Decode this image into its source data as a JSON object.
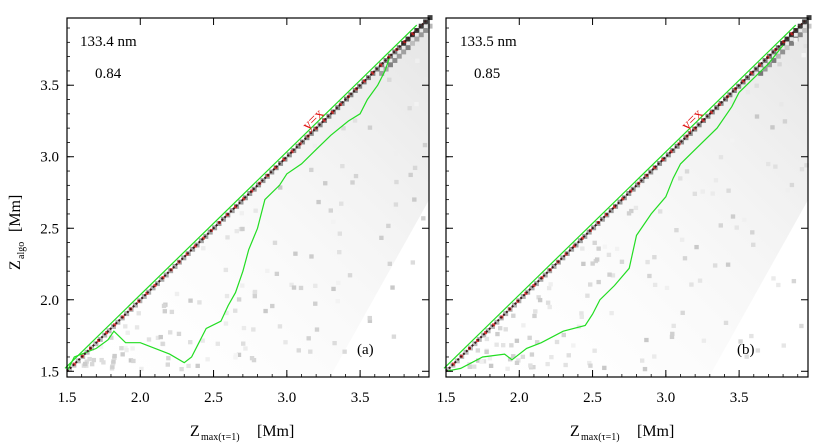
{
  "chart_data": [
    {
      "type": "heatmap",
      "panel": "(a)",
      "wavelength": "133.4 nm",
      "correlation": "0.84",
      "xlabel_main": "Z",
      "xlabel_sub": "max(τ=1)",
      "xlabel_unit": "[Mm]",
      "ylabel_main": "Z",
      "ylabel_sub": "algo",
      "ylabel_unit": "[Mm]",
      "xlim": [
        1.5,
        3.97
      ],
      "ylim": [
        1.46,
        3.97
      ],
      "xticks": [
        "1.5",
        "2.0",
        "2.5",
        "3.0",
        "3.5"
      ],
      "yticks": [
        "1.5",
        "2.0",
        "2.5",
        "3.0",
        "3.5"
      ],
      "reference_line": {
        "label": "y=x",
        "color": "#e01010"
      },
      "contour_color": "#22dd22",
      "contour": [
        [
          1.5,
          1.5
        ],
        [
          1.55,
          1.6
        ],
        [
          1.7,
          1.66
        ],
        [
          1.78,
          1.72
        ],
        [
          1.82,
          1.78
        ],
        [
          1.9,
          1.7
        ],
        [
          2.0,
          1.7
        ],
        [
          2.2,
          1.62
        ],
        [
          2.3,
          1.56
        ],
        [
          2.35,
          1.6
        ],
        [
          2.4,
          1.7
        ],
        [
          2.45,
          1.8
        ],
        [
          2.55,
          1.85
        ],
        [
          2.6,
          1.96
        ],
        [
          2.65,
          2.05
        ],
        [
          2.7,
          2.2
        ],
        [
          2.74,
          2.35
        ],
        [
          2.8,
          2.5
        ],
        [
          2.85,
          2.7
        ],
        [
          2.95,
          2.8
        ],
        [
          3.0,
          2.88
        ],
        [
          3.1,
          2.95
        ],
        [
          3.2,
          3.05
        ],
        [
          3.3,
          3.15
        ],
        [
          3.42,
          3.25
        ],
        [
          3.5,
          3.3
        ],
        [
          3.55,
          3.4
        ],
        [
          3.62,
          3.5
        ],
        [
          3.67,
          3.6
        ],
        [
          3.7,
          3.69
        ]
      ]
    },
    {
      "type": "heatmap",
      "panel": "(b)",
      "wavelength": "133.5 nm",
      "correlation": "0.85",
      "xlabel_main": "Z",
      "xlabel_sub": "max(τ=1)",
      "xlabel_unit": "[Mm]",
      "xlim": [
        1.5,
        3.97
      ],
      "ylim": [
        1.46,
        3.97
      ],
      "xticks": [
        "1.5",
        "2.0",
        "2.5",
        "3.0",
        "3.5"
      ],
      "yticks": [],
      "reference_line": {
        "label": "y=x",
        "color": "#e01010"
      },
      "contour_color": "#22dd22",
      "contour": [
        [
          1.5,
          1.5
        ],
        [
          1.6,
          1.52
        ],
        [
          1.75,
          1.6
        ],
        [
          1.9,
          1.62
        ],
        [
          1.95,
          1.58
        ],
        [
          2.05,
          1.66
        ],
        [
          2.15,
          1.7
        ],
        [
          2.3,
          1.78
        ],
        [
          2.45,
          1.82
        ],
        [
          2.5,
          1.9
        ],
        [
          2.55,
          2.0
        ],
        [
          2.65,
          2.1
        ],
        [
          2.75,
          2.22
        ],
        [
          2.8,
          2.45
        ],
        [
          2.9,
          2.6
        ],
        [
          3.0,
          2.72
        ],
        [
          3.05,
          2.85
        ],
        [
          3.1,
          2.95
        ],
        [
          3.2,
          3.05
        ],
        [
          3.35,
          3.2
        ],
        [
          3.45,
          3.35
        ],
        [
          3.5,
          3.45
        ],
        [
          3.6,
          3.55
        ],
        [
          3.7,
          3.65
        ],
        [
          3.8,
          3.78
        ]
      ]
    }
  ]
}
